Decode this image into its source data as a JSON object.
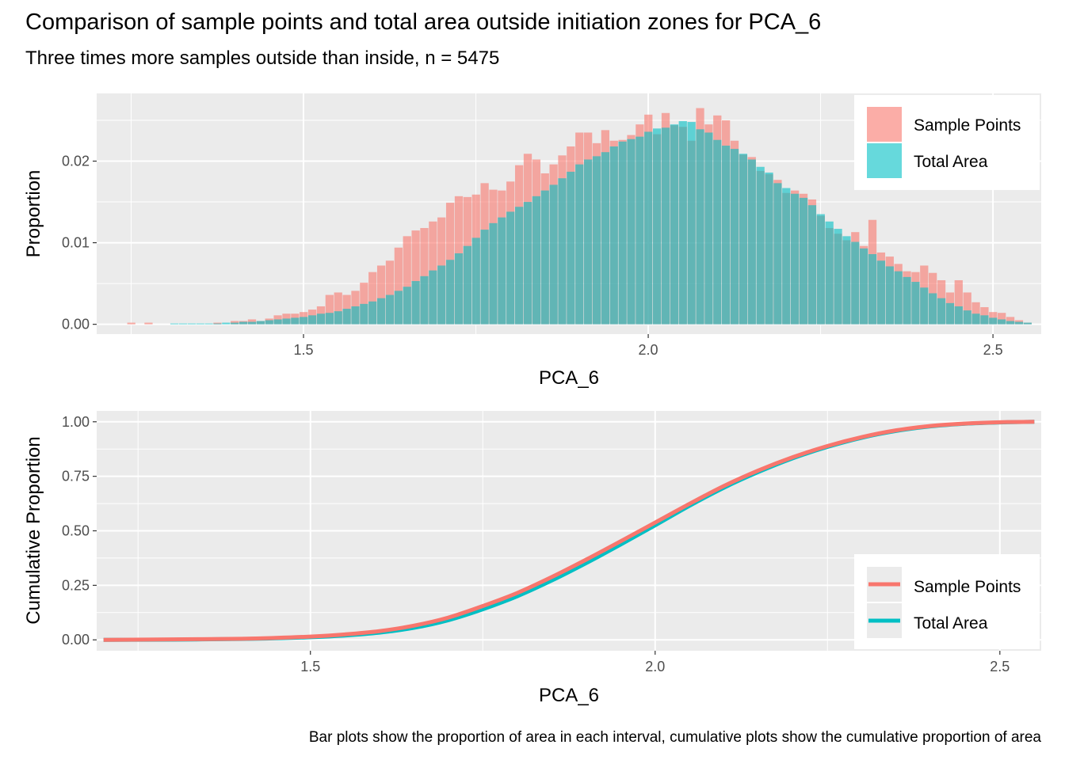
{
  "title": "Comparison of sample points and total area outside initiation zones for PCA_6",
  "subtitle": "Three times more samples outside than inside, n = 5475",
  "caption": "Bar plots show the proportion of area in each interval, cumulative plots show the cumulative proportion of area",
  "colors": {
    "sample": "#F8766D",
    "area": "#00BFC4",
    "panel": "#EBEBEB",
    "grid": "#FFFFFF"
  },
  "chart_data": [
    {
      "type": "bar",
      "xlabel": "PCA_6",
      "ylabel": "Proportion",
      "xlim": [
        1.2,
        2.57
      ],
      "ylim": [
        -0.0012,
        0.0283
      ],
      "xticks": [
        1.5,
        2.0,
        2.5
      ],
      "xtick_labels": [
        "1.5",
        "2.0",
        "2.5"
      ],
      "yticks": [
        0.0,
        0.01,
        0.02
      ],
      "ytick_labels": [
        "0.00",
        "0.01",
        "0.02"
      ],
      "bin_width": 0.0125,
      "x": [
        1.25,
        1.2625,
        1.275,
        1.2875,
        1.3,
        1.3125,
        1.325,
        1.3375,
        1.35,
        1.3625,
        1.375,
        1.3875,
        1.4,
        1.4125,
        1.425,
        1.4375,
        1.45,
        1.4625,
        1.475,
        1.4875,
        1.5,
        1.5125,
        1.525,
        1.5375,
        1.55,
        1.5625,
        1.575,
        1.5875,
        1.6,
        1.6125,
        1.625,
        1.6375,
        1.65,
        1.6625,
        1.675,
        1.6875,
        1.7,
        1.7125,
        1.725,
        1.7375,
        1.75,
        1.7625,
        1.775,
        1.7875,
        1.8,
        1.8125,
        1.825,
        1.8375,
        1.85,
        1.8625,
        1.875,
        1.8875,
        1.9,
        1.9125,
        1.925,
        1.9375,
        1.95,
        1.9625,
        1.975,
        1.9875,
        2.0,
        2.0125,
        2.025,
        2.0375,
        2.05,
        2.0625,
        2.075,
        2.0875,
        2.1,
        2.1125,
        2.125,
        2.1375,
        2.15,
        2.1625,
        2.175,
        2.1875,
        2.2,
        2.2125,
        2.225,
        2.2375,
        2.25,
        2.2625,
        2.275,
        2.2875,
        2.3,
        2.3125,
        2.325,
        2.3375,
        2.35,
        2.3625,
        2.375,
        2.3875,
        2.4,
        2.4125,
        2.425,
        2.4375,
        2.45,
        2.4625,
        2.475,
        2.4875,
        2.5,
        2.5125,
        2.525,
        2.5375,
        2.55
      ],
      "series": [
        {
          "name": "Sample Points",
          "color": "#F8766D",
          "values": [
            0.0002,
            0.0,
            0.0002,
            0.0,
            0.0,
            0.0,
            0.0,
            0.0,
            0.0,
            0.0,
            0.0002,
            0.0,
            0.0004,
            0.0004,
            0.0006,
            0.0004,
            0.0007,
            0.0011,
            0.0013,
            0.0013,
            0.0015,
            0.0018,
            0.0022,
            0.0036,
            0.0039,
            0.0036,
            0.0041,
            0.0051,
            0.0064,
            0.0072,
            0.0078,
            0.0094,
            0.0108,
            0.0115,
            0.0118,
            0.0126,
            0.0131,
            0.0149,
            0.0157,
            0.0156,
            0.0159,
            0.0173,
            0.0165,
            0.0164,
            0.0175,
            0.0195,
            0.0209,
            0.0202,
            0.0185,
            0.0196,
            0.0207,
            0.0218,
            0.0235,
            0.0235,
            0.0222,
            0.0238,
            0.0225,
            0.0226,
            0.0232,
            0.0245,
            0.0257,
            0.0233,
            0.0259,
            0.0244,
            0.0242,
            0.0225,
            0.0265,
            0.0245,
            0.0256,
            0.025,
            0.0225,
            0.0208,
            0.0205,
            0.0188,
            0.0184,
            0.0177,
            0.0161,
            0.0164,
            0.016,
            0.0153,
            0.0133,
            0.0118,
            0.0111,
            0.0103,
            0.0113,
            0.0096,
            0.0128,
            0.0088,
            0.0083,
            0.0074,
            0.0065,
            0.0064,
            0.0072,
            0.0063,
            0.0054,
            0.0039,
            0.0054,
            0.0039,
            0.0027,
            0.0021,
            0.0015,
            0.0014,
            0.0009,
            0.0005,
            0.0002
          ]
        },
        {
          "name": "Total Area",
          "color": "#00BFC4",
          "values": [
            0.0,
            0.0,
            0.0,
            0.0,
            0.0,
            0.0001,
            0.0001,
            0.0001,
            0.0001,
            0.0001,
            0.0001,
            0.0002,
            0.0002,
            0.0003,
            0.0003,
            0.0004,
            0.0005,
            0.0006,
            0.0007,
            0.0008,
            0.0009,
            0.0011,
            0.0013,
            0.0014,
            0.0016,
            0.0019,
            0.0022,
            0.0025,
            0.0028,
            0.0032,
            0.0036,
            0.0041,
            0.0046,
            0.0053,
            0.0059,
            0.0066,
            0.0072,
            0.0079,
            0.0087,
            0.0096,
            0.0106,
            0.0116,
            0.0124,
            0.0131,
            0.0138,
            0.0144,
            0.015,
            0.0157,
            0.0164,
            0.0171,
            0.0179,
            0.0187,
            0.0196,
            0.0202,
            0.0206,
            0.0211,
            0.0218,
            0.0224,
            0.0227,
            0.023,
            0.0236,
            0.024,
            0.0241,
            0.0245,
            0.0249,
            0.0248,
            0.0239,
            0.0235,
            0.0226,
            0.0219,
            0.0215,
            0.0209,
            0.0202,
            0.0193,
            0.0186,
            0.0173,
            0.0167,
            0.016,
            0.0155,
            0.0146,
            0.0135,
            0.0126,
            0.0117,
            0.0108,
            0.0101,
            0.0093,
            0.0086,
            0.0078,
            0.0071,
            0.0065,
            0.0058,
            0.0052,
            0.0045,
            0.0038,
            0.0032,
            0.0026,
            0.0022,
            0.0017,
            0.0013,
            0.0011,
            0.0008,
            0.0006,
            0.0004,
            0.0003,
            0.0002
          ]
        }
      ],
      "legend": {
        "position": "top-right",
        "entries": [
          "Sample Points",
          "Total Area"
        ]
      }
    },
    {
      "type": "line",
      "xlabel": "PCA_6",
      "ylabel": "Cumulative Proportion",
      "xlim": [
        1.19,
        2.56
      ],
      "ylim": [
        -0.05,
        1.05
      ],
      "xticks": [
        1.5,
        2.0,
        2.5
      ],
      "xtick_labels": [
        "1.5",
        "2.0",
        "2.5"
      ],
      "yticks": [
        0.0,
        0.25,
        0.5,
        0.75,
        1.0
      ],
      "ytick_labels": [
        "0.00",
        "0.25",
        "0.50",
        "0.75",
        "1.00"
      ],
      "series": [
        {
          "name": "Total Area",
          "color": "#00BFC4",
          "x": [
            1.2,
            1.3,
            1.4,
            1.45,
            1.5,
            1.55,
            1.6,
            1.65,
            1.7,
            1.75,
            1.8,
            1.85,
            1.9,
            1.95,
            2.0,
            2.05,
            2.1,
            2.15,
            2.2,
            2.25,
            2.3,
            2.35,
            2.4,
            2.45,
            2.5,
            2.55
          ],
          "y": [
            0.0,
            0.001,
            0.004,
            0.007,
            0.012,
            0.02,
            0.033,
            0.055,
            0.09,
            0.14,
            0.2,
            0.272,
            0.352,
            0.437,
            0.525,
            0.615,
            0.698,
            0.77,
            0.833,
            0.885,
            0.927,
            0.958,
            0.979,
            0.991,
            0.997,
            1.0
          ]
        },
        {
          "name": "Sample Points",
          "color": "#F8766D",
          "x": [
            1.2,
            1.3,
            1.4,
            1.45,
            1.5,
            1.55,
            1.6,
            1.65,
            1.7,
            1.75,
            1.8,
            1.85,
            1.9,
            1.95,
            2.0,
            2.05,
            2.1,
            2.15,
            2.2,
            2.25,
            2.3,
            2.35,
            2.4,
            2.45,
            2.5,
            2.55
          ],
          "y": [
            0.0,
            0.002,
            0.005,
            0.009,
            0.015,
            0.025,
            0.04,
            0.065,
            0.102,
            0.155,
            0.215,
            0.288,
            0.368,
            0.452,
            0.538,
            0.624,
            0.706,
            0.777,
            0.838,
            0.889,
            0.93,
            0.961,
            0.981,
            0.992,
            0.998,
            1.0
          ]
        }
      ],
      "legend": {
        "position": "bottom-right",
        "entries": [
          "Sample Points",
          "Total Area"
        ]
      }
    }
  ]
}
